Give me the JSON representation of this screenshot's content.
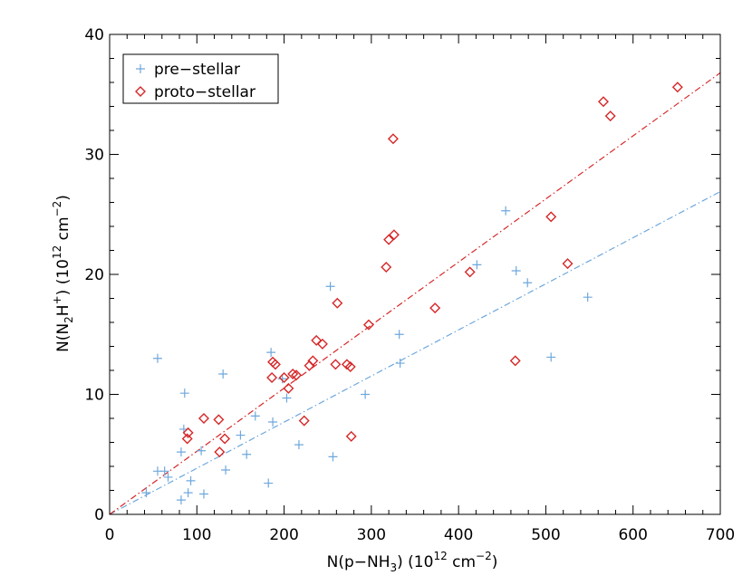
{
  "chart_data": {
    "type": "scatter",
    "title": "",
    "xlabel": {
      "prefix": "N(p−NH",
      "sub": "3",
      "mid": ")  (10",
      "sup_exp": "12",
      "unit": " cm",
      "sup_unit": "−2",
      "suffix": ")"
    },
    "ylabel": {
      "prefix": "N(N",
      "sub": "2",
      "mid1": "H",
      "sup_plus": "+",
      "mid2": ")  (10",
      "sup_exp": "12",
      "unit": " cm",
      "sup_unit": "−2",
      "suffix": ")"
    },
    "xlim": [
      0,
      700
    ],
    "ylim": [
      0,
      40
    ],
    "xticks": [
      "0",
      "100",
      "200",
      "300",
      "400",
      "500",
      "600",
      "700"
    ],
    "yticks": [
      "0",
      "10",
      "20",
      "30",
      "40"
    ],
    "legend_position": "top-left",
    "grid": false,
    "series": [
      {
        "name": "pre−stellar",
        "marker": "plus",
        "color": "#6fa8dc",
        "points": [
          [
            55,
            13.0
          ],
          [
            86,
            10.1
          ],
          [
            85,
            7.1
          ],
          [
            82,
            5.2
          ],
          [
            90,
            1.8
          ],
          [
            93,
            2.8
          ],
          [
            82,
            1.2
          ],
          [
            55,
            3.6
          ],
          [
            63,
            3.6
          ],
          [
            67,
            3.1
          ],
          [
            42,
            1.8
          ],
          [
            105,
            5.3
          ],
          [
            108,
            1.7
          ],
          [
            130,
            11.7
          ],
          [
            133,
            3.7
          ],
          [
            150,
            6.6
          ],
          [
            157,
            5.0
          ],
          [
            167,
            8.2
          ],
          [
            182,
            2.6
          ],
          [
            185,
            13.5
          ],
          [
            187,
            7.7
          ],
          [
            198,
            11.3
          ],
          [
            203,
            9.7
          ],
          [
            217,
            5.8
          ],
          [
            253,
            19.0
          ],
          [
            256,
            4.8
          ],
          [
            293,
            10.0
          ],
          [
            332,
            15.0
          ],
          [
            333,
            12.6
          ],
          [
            421,
            20.8
          ],
          [
            454,
            25.3
          ],
          [
            466,
            20.3
          ],
          [
            479,
            19.3
          ],
          [
            506,
            13.1
          ],
          [
            548,
            18.1
          ]
        ],
        "fit": {
          "x": [
            0,
            700
          ],
          "y": [
            0,
            26.9
          ]
        }
      },
      {
        "name": "proto−stellar",
        "marker": "diamond",
        "color": "#d62728",
        "points": [
          [
            89,
            6.3
          ],
          [
            90,
            6.8
          ],
          [
            108,
            8.0
          ],
          [
            125,
            7.9
          ],
          [
            126,
            5.2
          ],
          [
            132,
            6.3
          ],
          [
            186,
            11.4
          ],
          [
            187,
            12.7
          ],
          [
            190,
            12.5
          ],
          [
            200,
            11.4
          ],
          [
            205,
            10.5
          ],
          [
            210,
            11.7
          ],
          [
            214,
            11.6
          ],
          [
            223,
            7.8
          ],
          [
            229,
            12.4
          ],
          [
            233,
            12.8
          ],
          [
            237,
            14.5
          ],
          [
            244,
            14.2
          ],
          [
            259,
            12.5
          ],
          [
            261,
            17.6
          ],
          [
            272,
            12.5
          ],
          [
            276,
            12.3
          ],
          [
            277,
            6.5
          ],
          [
            297,
            15.8
          ],
          [
            317,
            20.6
          ],
          [
            320,
            22.9
          ],
          [
            325,
            31.3
          ],
          [
            326,
            23.3
          ],
          [
            373,
            17.2
          ],
          [
            413,
            20.2
          ],
          [
            465,
            12.8
          ],
          [
            506,
            24.8
          ],
          [
            525,
            20.9
          ],
          [
            566,
            34.4
          ],
          [
            574,
            33.2
          ],
          [
            651,
            35.6
          ]
        ],
        "fit": {
          "x": [
            0,
            700
          ],
          "y": [
            0,
            36.8
          ]
        }
      }
    ]
  }
}
